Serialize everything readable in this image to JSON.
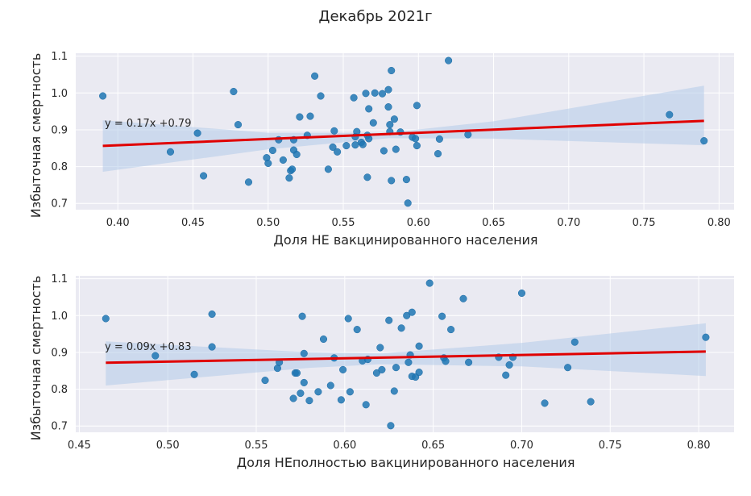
{
  "figure": {
    "suptitle": "Декабрь 2021г"
  },
  "colors": {
    "background": "#eaeaf2",
    "grid": "#ffffff",
    "points": "#1f77b4",
    "regression_line": "#e00000",
    "confidence_band": "#aec7e8"
  },
  "chart_data": [
    {
      "type": "scatter",
      "xlabel": "Доля НЕ вакцинированного населения",
      "ylabel": "Избыточная смертность",
      "equation": "y = 0.17x +0.79",
      "xlim": [
        0.372,
        0.81
      ],
      "ylim": [
        0.683,
        1.108
      ],
      "xticks": [
        "0.40",
        "0.45",
        "0.50",
        "0.55",
        "0.60",
        "0.65",
        "0.70",
        "0.75",
        "0.80"
      ],
      "yticks": [
        "0.7",
        "0.8",
        "0.9",
        "1.0",
        "1.1"
      ],
      "grid": true,
      "regression": {
        "slope": 0.17,
        "intercept": 0.79,
        "x_range": [
          0.39,
          0.79
        ],
        "band": [
          [
            0.39,
            0.786,
            0.926
          ],
          [
            0.5,
            0.847,
            0.892
          ],
          [
            0.58,
            0.877,
            0.892
          ],
          [
            0.65,
            0.876,
            0.923
          ],
          [
            0.79,
            0.858,
            1.02
          ]
        ]
      },
      "points": [
        [
          0.39,
          0.992
        ],
        [
          0.435,
          0.84
        ],
        [
          0.453,
          0.891
        ],
        [
          0.457,
          0.775
        ],
        [
          0.477,
          1.004
        ],
        [
          0.48,
          0.914
        ],
        [
          0.487,
          0.758
        ],
        [
          0.499,
          0.824
        ],
        [
          0.5,
          0.809
        ],
        [
          0.503,
          0.844
        ],
        [
          0.507,
          0.873
        ],
        [
          0.51,
          0.818
        ],
        [
          0.514,
          0.769
        ],
        [
          0.515,
          0.789
        ],
        [
          0.516,
          0.793
        ],
        [
          0.517,
          0.845
        ],
        [
          0.517,
          0.873
        ],
        [
          0.519,
          0.833
        ],
        [
          0.521,
          0.935
        ],
        [
          0.526,
          0.885
        ],
        [
          0.528,
          0.937
        ],
        [
          0.531,
          1.046
        ],
        [
          0.535,
          0.992
        ],
        [
          0.54,
          0.793
        ],
        [
          0.543,
          0.853
        ],
        [
          0.544,
          0.897
        ],
        [
          0.546,
          0.84
        ],
        [
          0.552,
          0.857
        ],
        [
          0.557,
          0.987
        ],
        [
          0.558,
          0.859
        ],
        [
          0.558,
          0.881
        ],
        [
          0.559,
          0.895
        ],
        [
          0.562,
          0.866
        ],
        [
          0.563,
          0.86
        ],
        [
          0.565,
          0.999
        ],
        [
          0.566,
          0.885
        ],
        [
          0.566,
          0.771
        ],
        [
          0.567,
          0.957
        ],
        [
          0.567,
          0.876
        ],
        [
          0.57,
          0.919
        ],
        [
          0.571,
          1.0
        ],
        [
          0.576,
          0.998
        ],
        [
          0.577,
          0.843
        ],
        [
          0.58,
          1.009
        ],
        [
          0.58,
          0.962
        ],
        [
          0.581,
          0.895
        ],
        [
          0.581,
          0.914
        ],
        [
          0.582,
          1.061
        ],
        [
          0.582,
          0.762
        ],
        [
          0.584,
          0.929
        ],
        [
          0.585,
          0.847
        ],
        [
          0.588,
          0.894
        ],
        [
          0.592,
          0.765
        ],
        [
          0.593,
          0.701
        ],
        [
          0.596,
          0.88
        ],
        [
          0.598,
          0.876
        ],
        [
          0.599,
          0.966
        ],
        [
          0.599,
          0.857
        ],
        [
          0.613,
          0.835
        ],
        [
          0.614,
          0.875
        ],
        [
          0.62,
          1.088
        ],
        [
          0.633,
          0.887
        ],
        [
          0.767,
          0.941
        ],
        [
          0.79,
          0.87
        ]
      ]
    },
    {
      "type": "scatter",
      "xlabel": "Доля НЕполностью вакцинированного населения",
      "ylabel": "Избыточная смертность",
      "equation": "y = 0.09x +0.83",
      "xlim": [
        0.448,
        0.82
      ],
      "ylim": [
        0.683,
        1.108
      ],
      "xticks": [
        "0.45",
        "0.50",
        "0.55",
        "0.60",
        "0.65",
        "0.70",
        "0.75",
        "0.80"
      ],
      "yticks": [
        "0.7",
        "0.8",
        "0.9",
        "1.0",
        "1.1"
      ],
      "grid": true,
      "regression": {
        "slope": 0.09,
        "intercept": 0.83,
        "x_range": [
          0.465,
          0.804
        ],
        "band": [
          [
            0.465,
            0.81,
            0.93
          ],
          [
            0.58,
            0.858,
            0.9
          ],
          [
            0.62,
            0.868,
            0.897
          ],
          [
            0.7,
            0.862,
            0.926
          ],
          [
            0.804,
            0.836,
            0.979
          ]
        ]
      },
      "points": [
        [
          0.465,
          0.992
        ],
        [
          0.493,
          0.891
        ],
        [
          0.515,
          0.84
        ],
        [
          0.525,
          1.004
        ],
        [
          0.525,
          0.915
        ],
        [
          0.555,
          0.824
        ],
        [
          0.562,
          0.857
        ],
        [
          0.563,
          0.873
        ],
        [
          0.571,
          0.775
        ],
        [
          0.572,
          0.844
        ],
        [
          0.573,
          0.844
        ],
        [
          0.575,
          0.789
        ],
        [
          0.576,
          0.998
        ],
        [
          0.577,
          0.818
        ],
        [
          0.577,
          0.897
        ],
        [
          0.58,
          0.769
        ],
        [
          0.585,
          0.793
        ],
        [
          0.588,
          0.936
        ],
        [
          0.592,
          0.81
        ],
        [
          0.594,
          0.885
        ],
        [
          0.598,
          0.771
        ],
        [
          0.599,
          0.853
        ],
        [
          0.602,
          0.992
        ],
        [
          0.603,
          0.793
        ],
        [
          0.607,
          0.962
        ],
        [
          0.61,
          0.877
        ],
        [
          0.612,
          0.758
        ],
        [
          0.613,
          0.881
        ],
        [
          0.618,
          0.844
        ],
        [
          0.62,
          0.913
        ],
        [
          0.621,
          0.853
        ],
        [
          0.625,
          0.987
        ],
        [
          0.626,
          0.701
        ],
        [
          0.628,
          0.795
        ],
        [
          0.629,
          0.859
        ],
        [
          0.632,
          0.966
        ],
        [
          0.635,
          1.0
        ],
        [
          0.636,
          0.873
        ],
        [
          0.637,
          0.893
        ],
        [
          0.638,
          0.835
        ],
        [
          0.638,
          1.009
        ],
        [
          0.64,
          0.833
        ],
        [
          0.642,
          0.917
        ],
        [
          0.642,
          0.846
        ],
        [
          0.648,
          1.088
        ],
        [
          0.655,
          0.998
        ],
        [
          0.656,
          0.885
        ],
        [
          0.657,
          0.876
        ],
        [
          0.66,
          0.962
        ],
        [
          0.667,
          1.046
        ],
        [
          0.67,
          0.873
        ],
        [
          0.687,
          0.887
        ],
        [
          0.691,
          0.838
        ],
        [
          0.693,
          0.866
        ],
        [
          0.695,
          0.887
        ],
        [
          0.7,
          1.061
        ],
        [
          0.713,
          0.762
        ],
        [
          0.726,
          0.859
        ],
        [
          0.73,
          0.928
        ],
        [
          0.739,
          0.766
        ],
        [
          0.804,
          0.941
        ]
      ]
    }
  ]
}
